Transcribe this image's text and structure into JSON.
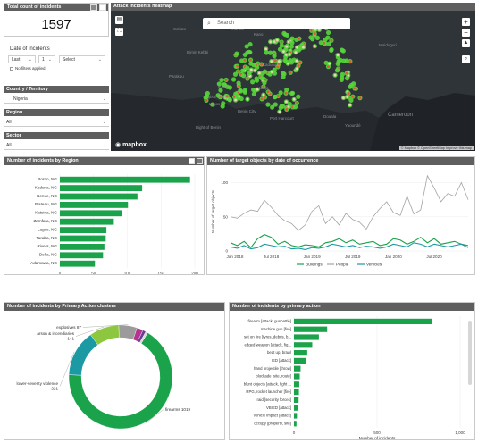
{
  "total": {
    "title": "Total count of incidents",
    "value": "1597"
  },
  "date_filter": {
    "label": "Date of incidents",
    "mode": "Last",
    "amount": "1",
    "unit": "Select",
    "note": "No filters applied"
  },
  "filters": [
    {
      "title": "Country / Territory",
      "value": "Nigeria"
    },
    {
      "title": "Region",
      "value": "All"
    },
    {
      "title": "Sector",
      "value": "All"
    }
  ],
  "map": {
    "title": "Attack incidents heatmap",
    "search_placeholder": "Search",
    "brand": "mapbox",
    "attribution": "© Mapbox © OpenStreetMap Improve this map",
    "places": [
      "Sokoto",
      "Maradi",
      "Kano",
      "Birnin Kebbi",
      "Kaduna",
      "Maiduguri",
      "Parakou",
      "Abuja",
      "Ilorin",
      "Ogbomosho",
      "Lagos",
      "Benin City",
      "Port Harcourt",
      "Douala",
      "Yaoundé",
      "Cameroon",
      "Bight of Benin"
    ]
  },
  "region_chart": {
    "title": "Number of incidents by Region",
    "xlabel": "Number of incidents",
    "ticks": [
      0,
      50,
      100,
      150,
      200
    ],
    "xlim": [
      0,
      200
    ],
    "color": "#1aa34a",
    "categories": [
      "Borno, NG",
      "Kaduna, NG",
      "Benue, NG",
      "Plateau, NG",
      "Katsina, NG",
      "Zamfara, NG",
      "Lagos, NG",
      "Taraba, NG",
      "Rivers, NG",
      "Delta, NG",
      "Adamawa, NG"
    ],
    "values": [
      193,
      122,
      115,
      101,
      92,
      80,
      69,
      68,
      66,
      64,
      52
    ]
  },
  "line_chart": {
    "title": "Number of target objects by date of occurrence",
    "ylabel": "Number of target objects",
    "y_ticks": [
      0,
      50,
      100
    ],
    "ylim": [
      0,
      115
    ],
    "x_ticks": [
      "Jan 2018",
      "Jul 2018",
      "Jan 2019",
      "Jul 2019",
      "Jan 2020",
      "Jul 2020"
    ],
    "series": [
      {
        "name": "Buildings",
        "color": "#1aa34a",
        "values": [
          12,
          8,
          14,
          5,
          18,
          24,
          20,
          10,
          14,
          8,
          6,
          9,
          8,
          6,
          12,
          14,
          18,
          12,
          16,
          10,
          12,
          14,
          8,
          10,
          18,
          16,
          10,
          14,
          20,
          12,
          18,
          10,
          12,
          14,
          10,
          8
        ]
      },
      {
        "name": "People",
        "color": "#a3a3a3",
        "values": [
          50,
          48,
          55,
          60,
          58,
          74,
          64,
          52,
          44,
          40,
          30,
          38,
          58,
          66,
          40,
          50,
          38,
          55,
          46,
          42,
          32,
          50,
          62,
          72,
          56,
          52,
          80,
          54,
          60,
          110,
          92,
          72,
          84,
          80,
          100,
          75
        ]
      },
      {
        "name": "Vehicles",
        "color": "#1b9aa3",
        "values": [
          6,
          4,
          8,
          3,
          5,
          10,
          8,
          6,
          7,
          3,
          4,
          2,
          5,
          4,
          6,
          10,
          8,
          6,
          8,
          5,
          7,
          6,
          4,
          6,
          10,
          8,
          6,
          12,
          10,
          6,
          10,
          8,
          6,
          8,
          10,
          5
        ]
      }
    ]
  },
  "donut_chart": {
    "title": "Number of incidents by Primary Action clusters",
    "slices": [
      {
        "name": "firearms",
        "value": 1019,
        "label": "firearms 1019",
        "color": "#1aa34a"
      },
      {
        "name": "lower-severity violence",
        "value": 221,
        "label": "lower-severity violence\n221",
        "color": "#1b9aa3"
      },
      {
        "name": "arson & incendiaries",
        "value": 141,
        "label": "arson & incendiaries\n141",
        "color": "#8dc63f"
      },
      {
        "name": "explosives",
        "value": 87,
        "label": "explosives 87",
        "color": "#9b9b9b"
      },
      {
        "name": "other-a",
        "value": 30,
        "label": "",
        "color": "#b3338f"
      },
      {
        "name": "other-b",
        "value": 15,
        "label": "",
        "color": "#6a3d9a"
      },
      {
        "name": "other-c",
        "value": 10,
        "label": "",
        "color": "#d9d9d9"
      }
    ]
  },
  "action_chart": {
    "title": "Number of incidents by primary action",
    "xlabel": "Number of incidents",
    "ticks": [
      0,
      500,
      1000
    ],
    "xlim": [
      0,
      1000
    ],
    "color": "#1aa34a",
    "categories": [
      "firearm [attack, gunbattle]",
      "machine gun [fire]",
      "set on fire [tyres, debris, b...",
      "edged weapon [attack, fig...",
      "beat up, brawl",
      "IED [attack]",
      "hand projectile [throw]",
      "blockade [site, route]",
      "blunt objects [attack, fight ...",
      "RPG, rocket launcher [fire]",
      "raid [security forces]",
      "VBIED [attack]",
      "vehicle impact [attack]",
      "occupy [property, site]"
    ],
    "values": [
      830,
      200,
      150,
      110,
      80,
      70,
      40,
      35,
      32,
      30,
      28,
      22,
      18,
      15
    ]
  }
}
